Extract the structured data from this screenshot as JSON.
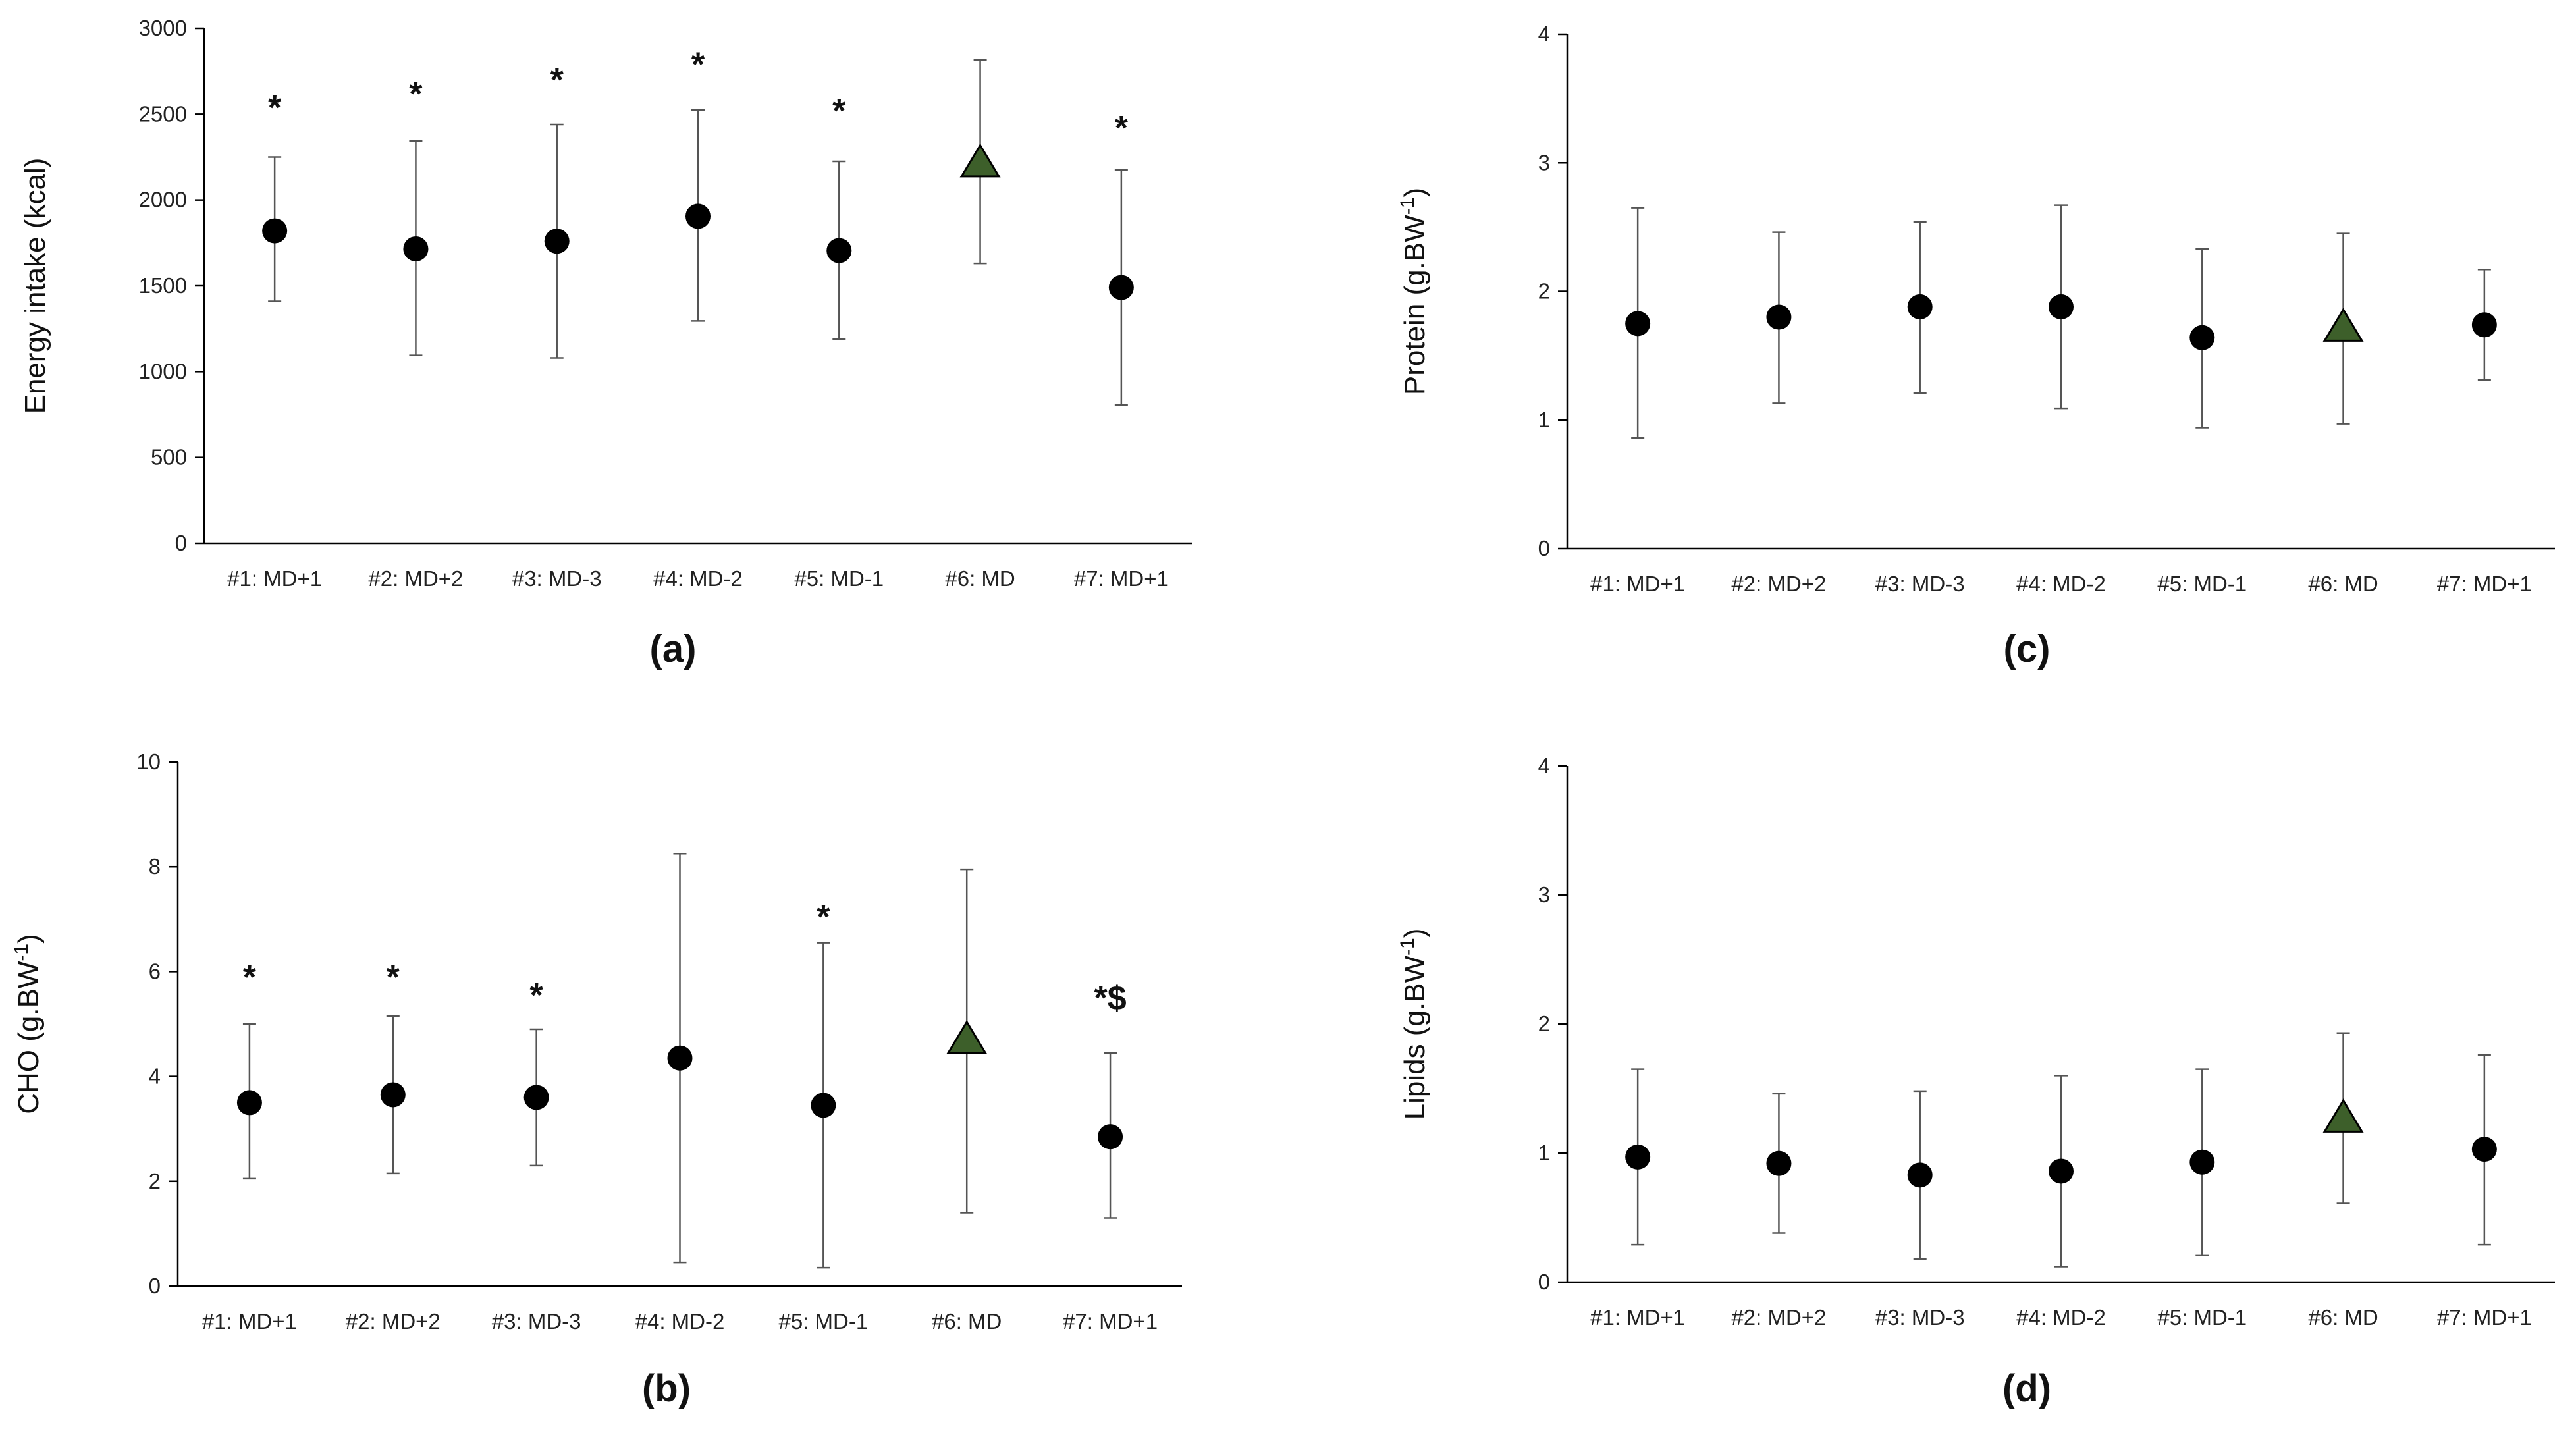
{
  "figure": {
    "background": "#ffffff",
    "marker_color": "#000000",
    "highlight_color": "#3d5f2a",
    "errorbar_color": "#555555"
  },
  "chart_data": [
    {
      "id": "a",
      "panel_label": "(a)",
      "type": "scatter",
      "ylabel": "Energy intake (kcal)",
      "ylabel_sup": "",
      "ylabel_close": "",
      "ylim": [
        0,
        3000
      ],
      "yticks": [
        "0",
        "500",
        "1000",
        "1500",
        "2000",
        "2500",
        "3000"
      ],
      "ytick_values": [
        0,
        500,
        1000,
        1500,
        2000,
        2500,
        3000
      ],
      "categories": [
        "#1: MD+1",
        "#2: MD+2",
        "#3: MD-3",
        "#4: MD-2",
        "#5: MD-1",
        "#6: MD",
        "#7: MD+1"
      ],
      "values": [
        1820,
        1715,
        1760,
        1905,
        1705,
        2215,
        1490
      ],
      "err_upper": [
        2250,
        2345,
        2440,
        2525,
        2225,
        2815,
        2175
      ],
      "err_lower": [
        1410,
        1095,
        1080,
        1295,
        1190,
        1630,
        805
      ],
      "markers": [
        "circle",
        "circle",
        "circle",
        "circle",
        "circle",
        "triangle",
        "circle"
      ],
      "annotations": [
        {
          "index": 0,
          "text": "*",
          "value": 2540
        },
        {
          "index": 1,
          "text": "*",
          "value": 2620
        },
        {
          "index": 2,
          "text": "*",
          "value": 2700
        },
        {
          "index": 3,
          "text": "*",
          "value": 2790
        },
        {
          "index": 4,
          "text": "*",
          "value": 2520
        },
        {
          "index": 6,
          "text": "*",
          "value": 2420
        }
      ]
    },
    {
      "id": "b",
      "panel_label": "(b)",
      "type": "scatter",
      "ylabel": "CHO (g.BW",
      "ylabel_sup": "-1",
      "ylabel_close": ")",
      "ylim": [
        0,
        10
      ],
      "yticks": [
        "0",
        "2",
        "4",
        "6",
        "8",
        "10"
      ],
      "ytick_values": [
        0,
        2,
        4,
        6,
        8,
        10
      ],
      "categories": [
        "#1: MD+1",
        "#2: MD+2",
        "#3: MD-3",
        "#4: MD-2",
        "#5: MD-1",
        "#6: MD",
        "#7: MD+1"
      ],
      "values": [
        3.5,
        3.65,
        3.6,
        4.35,
        3.45,
        4.7,
        2.85
      ],
      "err_upper": [
        5.0,
        5.15,
        4.9,
        8.25,
        6.55,
        7.95,
        4.45
      ],
      "err_lower": [
        2.05,
        2.15,
        2.3,
        0.45,
        0.35,
        1.4,
        1.3
      ],
      "markers": [
        "circle",
        "circle",
        "circle",
        "circle",
        "circle",
        "triangle",
        "circle"
      ],
      "annotations": [
        {
          "index": 0,
          "text": "*",
          "value": 5.9
        },
        {
          "index": 1,
          "text": "*",
          "value": 5.9
        },
        {
          "index": 2,
          "text": "*",
          "value": 5.55
        },
        {
          "index": 4,
          "text": "*",
          "value": 7.05
        },
        {
          "index": 6,
          "text": "*$",
          "value": 5.5
        }
      ]
    },
    {
      "id": "c",
      "panel_label": "(c)",
      "type": "scatter",
      "ylabel": "Protein (g.BW",
      "ylabel_sup": "-1",
      "ylabel_close": ")",
      "ylim": [
        0,
        4
      ],
      "yticks": [
        "0",
        "1",
        "2",
        "3",
        "4"
      ],
      "ytick_values": [
        0,
        1,
        2,
        3,
        4
      ],
      "categories": [
        "#1: MD+1",
        "#2: MD+2",
        "#3: MD-3",
        "#4: MD-2",
        "#5: MD-1",
        "#6: MD",
        "#7: MD+1"
      ],
      "values": [
        1.75,
        1.8,
        1.88,
        1.88,
        1.64,
        1.72,
        1.74
      ],
      "err_upper": [
        2.65,
        2.46,
        2.54,
        2.67,
        2.33,
        2.45,
        2.17
      ],
      "err_lower": [
        0.86,
        1.13,
        1.21,
        1.09,
        0.94,
        0.97,
        1.31
      ],
      "markers": [
        "circle",
        "circle",
        "circle",
        "circle",
        "circle",
        "triangle",
        "circle"
      ],
      "annotations": []
    },
    {
      "id": "d",
      "panel_label": "(d)",
      "type": "scatter",
      "ylabel": "Lipids (g.BW",
      "ylabel_sup": "-1",
      "ylabel_close": ")",
      "ylim": [
        0,
        4
      ],
      "yticks": [
        "0",
        "1",
        "2",
        "3",
        "4"
      ],
      "ytick_values": [
        0,
        1,
        2,
        3,
        4
      ],
      "categories": [
        "#1: MD+1",
        "#2: MD+2",
        "#3: MD-3",
        "#4: MD-2",
        "#5: MD-1",
        "#6: MD",
        "#7: MD+1"
      ],
      "values": [
        0.97,
        0.92,
        0.83,
        0.86,
        0.93,
        1.27,
        1.03
      ],
      "err_upper": [
        1.65,
        1.46,
        1.48,
        1.6,
        1.65,
        1.93,
        1.76
      ],
      "err_lower": [
        0.29,
        0.38,
        0.18,
        0.12,
        0.21,
        0.61,
        0.29
      ],
      "markers": [
        "circle",
        "circle",
        "circle",
        "circle",
        "circle",
        "triangle",
        "circle"
      ],
      "annotations": []
    }
  ]
}
